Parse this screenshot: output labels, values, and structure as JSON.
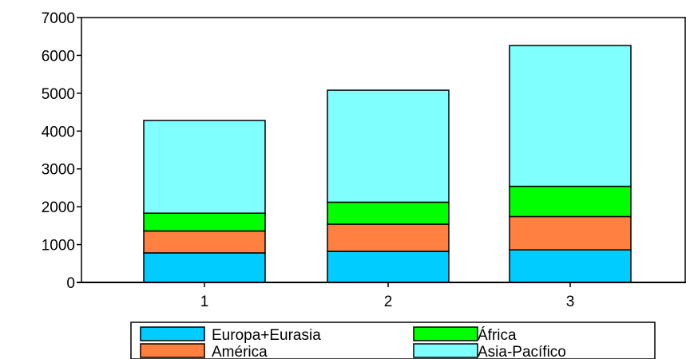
{
  "chart_data": {
    "type": "bar",
    "stacked": true,
    "categories": [
      "1",
      "2",
      "3"
    ],
    "series": [
      {
        "name": "Europa+Eurasia",
        "color": "#00ccff",
        "values": [
          780,
          820,
          860
        ]
      },
      {
        "name": "América",
        "color": "#ff8040",
        "values": [
          580,
          720,
          880
        ]
      },
      {
        "name": "África",
        "color": "#00ff00",
        "values": [
          470,
          580,
          800
        ]
      },
      {
        "name": "Asia-Pacífico",
        "color": "#80ffff",
        "values": [
          2450,
          2960,
          3720
        ]
      }
    ],
    "title": "",
    "xlabel": "",
    "ylabel": "",
    "ylim": [
      0,
      7000
    ],
    "yticks": [
      "0",
      "1000",
      "2000",
      "3000",
      "4000",
      "5000",
      "6000",
      "7000"
    ],
    "grid": false,
    "legend_position": "bottom"
  }
}
